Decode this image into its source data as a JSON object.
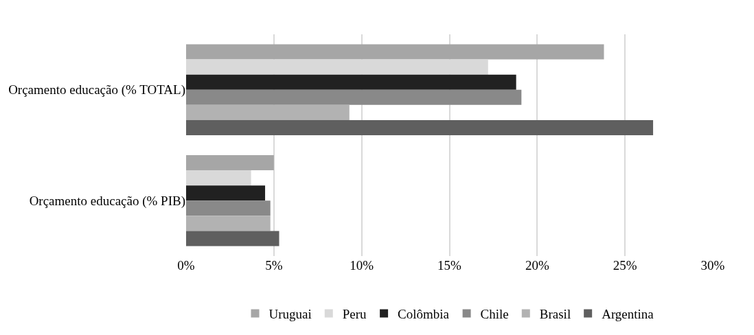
{
  "chart_data": {
    "type": "bar",
    "orientation": "horizontal",
    "categories": [
      "Orçamento educação (% TOTAL)",
      "Orçamento educação (% PIB)"
    ],
    "series": [
      {
        "name": "Uruguai",
        "color": "#a6a6a6",
        "values": [
          23.8,
          5.0
        ]
      },
      {
        "name": "Peru",
        "color": "#d9d9d9",
        "values": [
          17.2,
          3.7
        ]
      },
      {
        "name": "Colômbia",
        "color": "#212121",
        "values": [
          18.8,
          4.5
        ]
      },
      {
        "name": "Chile",
        "color": "#898989",
        "values": [
          19.1,
          4.8
        ]
      },
      {
        "name": "Brasil",
        "color": "#b2b2b2",
        "values": [
          9.3,
          4.8
        ]
      },
      {
        "name": "Argentina",
        "color": "#5f5f5f",
        "values": [
          26.6,
          5.3
        ]
      }
    ],
    "xlim": [
      0,
      30
    ],
    "xticks": [
      {
        "value": 0,
        "label": "0%"
      },
      {
        "value": 5,
        "label": "5%"
      },
      {
        "value": 10,
        "label": "10%"
      },
      {
        "value": 15,
        "label": "15%"
      },
      {
        "value": 20,
        "label": "20%"
      },
      {
        "value": 25,
        "label": "25%"
      },
      {
        "value": 30,
        "label": "30%"
      }
    ],
    "grid": "x",
    "legend": "bottom"
  }
}
